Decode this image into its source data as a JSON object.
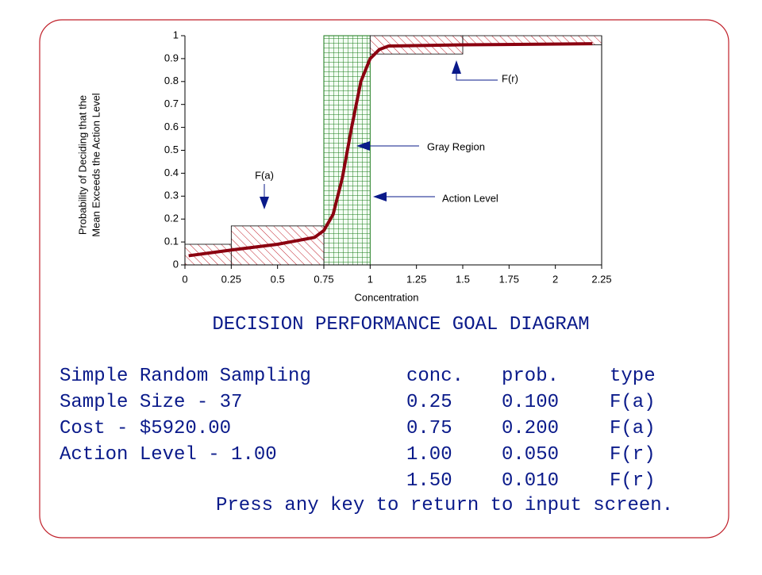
{
  "chart_data": {
    "type": "line",
    "title": "DECISION PERFORMANCE GOAL DIAGRAM",
    "x_label": "Concentration",
    "y_label": [
      "Probability of Deciding that the",
      "Mean Exceeds the Action Level"
    ],
    "xlim": [
      0,
      2.25
    ],
    "xticks": [
      0,
      0.25,
      0.5,
      0.75,
      1,
      1.25,
      1.5,
      1.75,
      2,
      2.25
    ],
    "ylim": [
      0,
      1
    ],
    "yticks": [
      0,
      0.1,
      0.2,
      0.3,
      0.4,
      0.5,
      0.6,
      0.7,
      0.8,
      0.9,
      1
    ],
    "series": [
      {
        "color": "#8b0010",
        "x": [
          0.02,
          0.25,
          0.5,
          0.7,
          0.75,
          0.8,
          0.85,
          0.9,
          0.95,
          1.0,
          1.05,
          1.1,
          1.5,
          2.2
        ],
        "values": [
          0.04,
          0.065,
          0.09,
          0.12,
          0.15,
          0.22,
          0.38,
          0.6,
          0.8,
          0.9,
          0.94,
          0.955,
          0.96,
          0.965
        ]
      }
    ],
    "regions": [
      {
        "x": [
          0,
          0.25
        ],
        "y": [
          0,
          0.09
        ]
      },
      {
        "x": [
          0.25,
          0.75
        ],
        "y": [
          0,
          0.17
        ]
      },
      {
        "x": [
          1,
          1.5
        ],
        "y": [
          0.92,
          1
        ]
      },
      {
        "x": [
          1.5,
          2.25
        ],
        "y": [
          0.96,
          1
        ]
      }
    ],
    "region_color": "#c0202a",
    "gray_region": [
      0.75,
      1
    ],
    "gray_color": "#1a7a1a",
    "annotations": [
      "F(a)",
      "F(r)",
      "Gray Region",
      "Action Level"
    ]
  },
  "info": [
    "Simple Random Sampling",
    "Sample Size - 37",
    "Cost - $5920.00",
    "Action Level - 1.00"
  ],
  "table": {
    "header": [
      "conc.",
      "prob.",
      "type"
    ],
    "rows": [
      [
        "0.25",
        "0.100",
        "F(a)"
      ],
      [
        "0.75",
        "0.200",
        "F(a)"
      ],
      [
        "1.00",
        "0.050",
        "F(r)"
      ],
      [
        "1.50",
        "0.010",
        "F(r)"
      ]
    ]
  },
  "footer": "Press any key to return to input screen."
}
